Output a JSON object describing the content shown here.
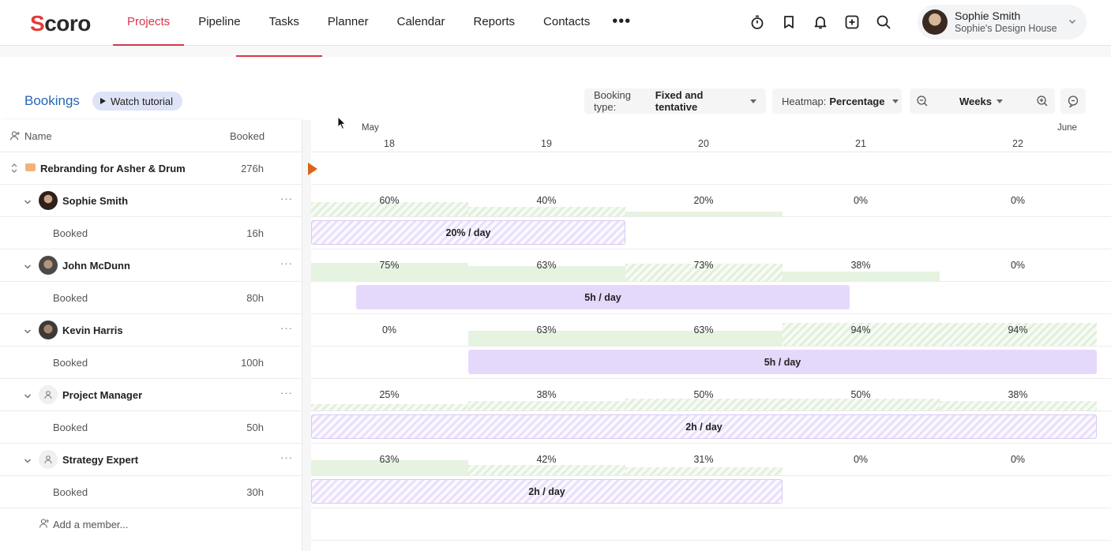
{
  "nav": {
    "logo": "Scoro",
    "items": [
      "Projects",
      "Pipeline",
      "Tasks",
      "Planner",
      "Calendar",
      "Reports",
      "Contacts"
    ],
    "more": "•••",
    "active": "Projects"
  },
  "user": {
    "name": "Sophie Smith",
    "company": "Sophie's Design House"
  },
  "toolbar": {
    "title": "Bookings",
    "tutorial": "Watch tutorial",
    "booking_type_label": "Booking type:",
    "booking_type_value": "Fixed and tentative",
    "heatmap_label": "Heatmap:",
    "heatmap_value": "Percentage",
    "scale": "Weeks"
  },
  "columns": {
    "name": "Name",
    "booked": "Booked"
  },
  "timeline": {
    "months": [
      "May",
      "June"
    ],
    "weeks": [
      "18",
      "19",
      "20",
      "21",
      "22"
    ]
  },
  "project": {
    "name": "Rebranding for Asher & Drum",
    "booked": "276h"
  },
  "members": [
    {
      "name": "Sophie Smith",
      "booked_label": "Booked",
      "booked": "16h",
      "percents": [
        "60%",
        "40%",
        "20%",
        "0%",
        "0%"
      ],
      "heat": [
        0.6,
        0.4,
        0.2,
        0,
        0
      ],
      "bar": "20% / day"
    },
    {
      "name": "John McDunn",
      "booked_label": "Booked",
      "booked": "80h",
      "percents": [
        "75%",
        "63%",
        "73%",
        "38%",
        "0%"
      ],
      "heat": [
        0.75,
        0.63,
        0.73,
        0.38,
        0
      ],
      "bar": "5h / day"
    },
    {
      "name": "Kevin Harris",
      "booked_label": "Booked",
      "booked": "100h",
      "percents": [
        "0%",
        "63%",
        "63%",
        "94%",
        "94%"
      ],
      "heat": [
        0,
        0.63,
        0.63,
        0.94,
        0.94
      ],
      "bar": "5h / day"
    },
    {
      "name": "Project Manager",
      "booked_label": "Booked",
      "booked": "50h",
      "percents": [
        "25%",
        "38%",
        "50%",
        "50%",
        "38%"
      ],
      "heat": [
        0.25,
        0.38,
        0.5,
        0.5,
        0.38
      ],
      "bar": "2h / day"
    },
    {
      "name": "Strategy Expert",
      "booked_label": "Booked",
      "booked": "30h",
      "percents": [
        "63%",
        "42%",
        "31%",
        "0%",
        "0%"
      ],
      "heat": [
        0.63,
        0.42,
        0.31,
        0,
        0
      ],
      "bar": "2h / day"
    }
  ],
  "add_member": "Add a member...",
  "row_menu": "···"
}
